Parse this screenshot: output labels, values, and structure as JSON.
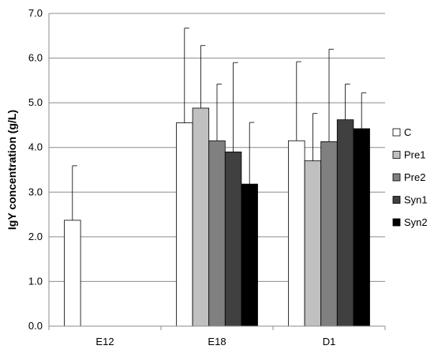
{
  "chart_data": {
    "type": "bar",
    "title": "",
    "xlabel": "",
    "ylabel": "IgY concentration (g/L)",
    "ylim": [
      0,
      7
    ],
    "yticks": [
      "0.0",
      "1.0",
      "2.0",
      "3.0",
      "4.0",
      "5.0",
      "6.0",
      "7.0"
    ],
    "grid": true,
    "legend": "right",
    "categories": [
      "E12",
      "E18",
      "D1"
    ],
    "series": [
      {
        "name": "C",
        "color": "#ffffff",
        "values": [
          2.37,
          4.55,
          4.15
        ],
        "errors": [
          1.22,
          2.12,
          1.77
        ]
      },
      {
        "name": "Pre1",
        "color": "#c0c0c0",
        "values": [
          null,
          4.88,
          3.7
        ],
        "errors": [
          null,
          1.4,
          1.06
        ]
      },
      {
        "name": "Pre2",
        "color": "#808080",
        "values": [
          null,
          4.15,
          4.13
        ],
        "errors": [
          null,
          1.27,
          2.07
        ]
      },
      {
        "name": "Syn1",
        "color": "#404040",
        "values": [
          null,
          3.9,
          4.62
        ],
        "errors": [
          null,
          2.0,
          0.8
        ]
      },
      {
        "name": "Syn2",
        "color": "#000000",
        "values": [
          null,
          3.18,
          4.42
        ],
        "errors": [
          null,
          1.38,
          0.8
        ]
      }
    ]
  }
}
